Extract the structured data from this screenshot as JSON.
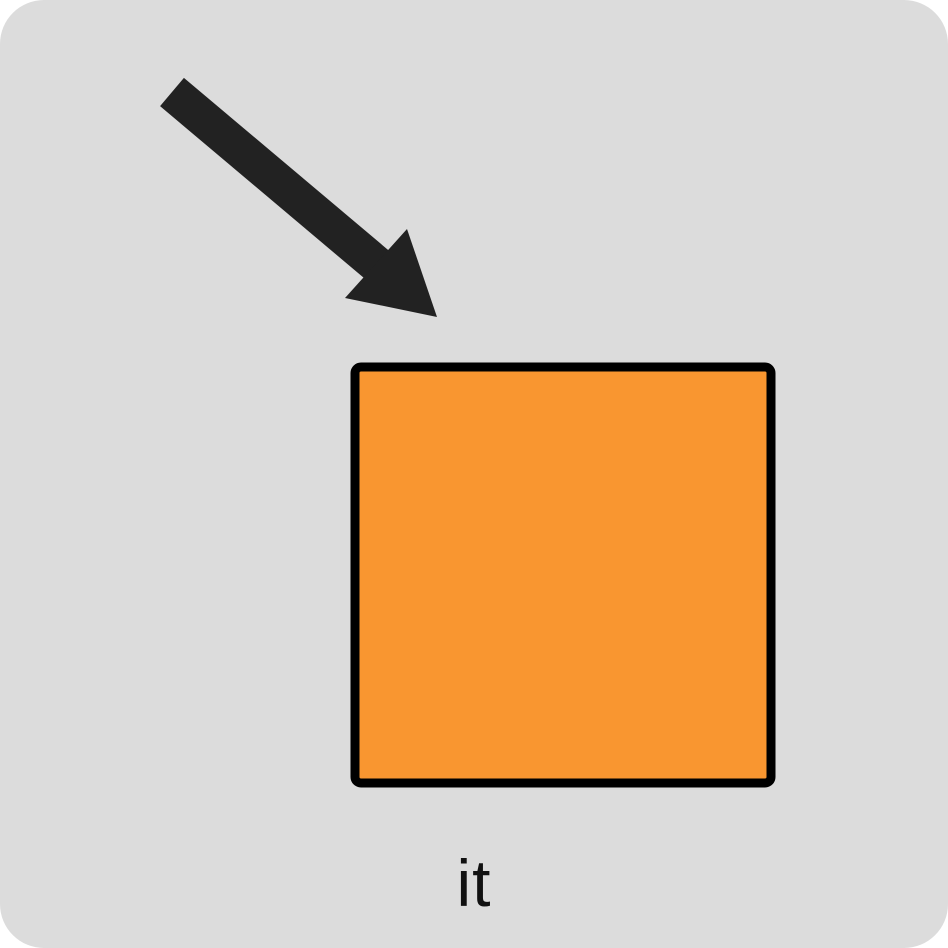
{
  "card": {
    "background": "#dcdcdc"
  },
  "symbol": {
    "caption": "it",
    "shape": "square",
    "shape_fill": "#f99630",
    "outline": "#000000",
    "arrow_icon": "arrow-down-right-icon",
    "arrow_color": "#222222"
  }
}
